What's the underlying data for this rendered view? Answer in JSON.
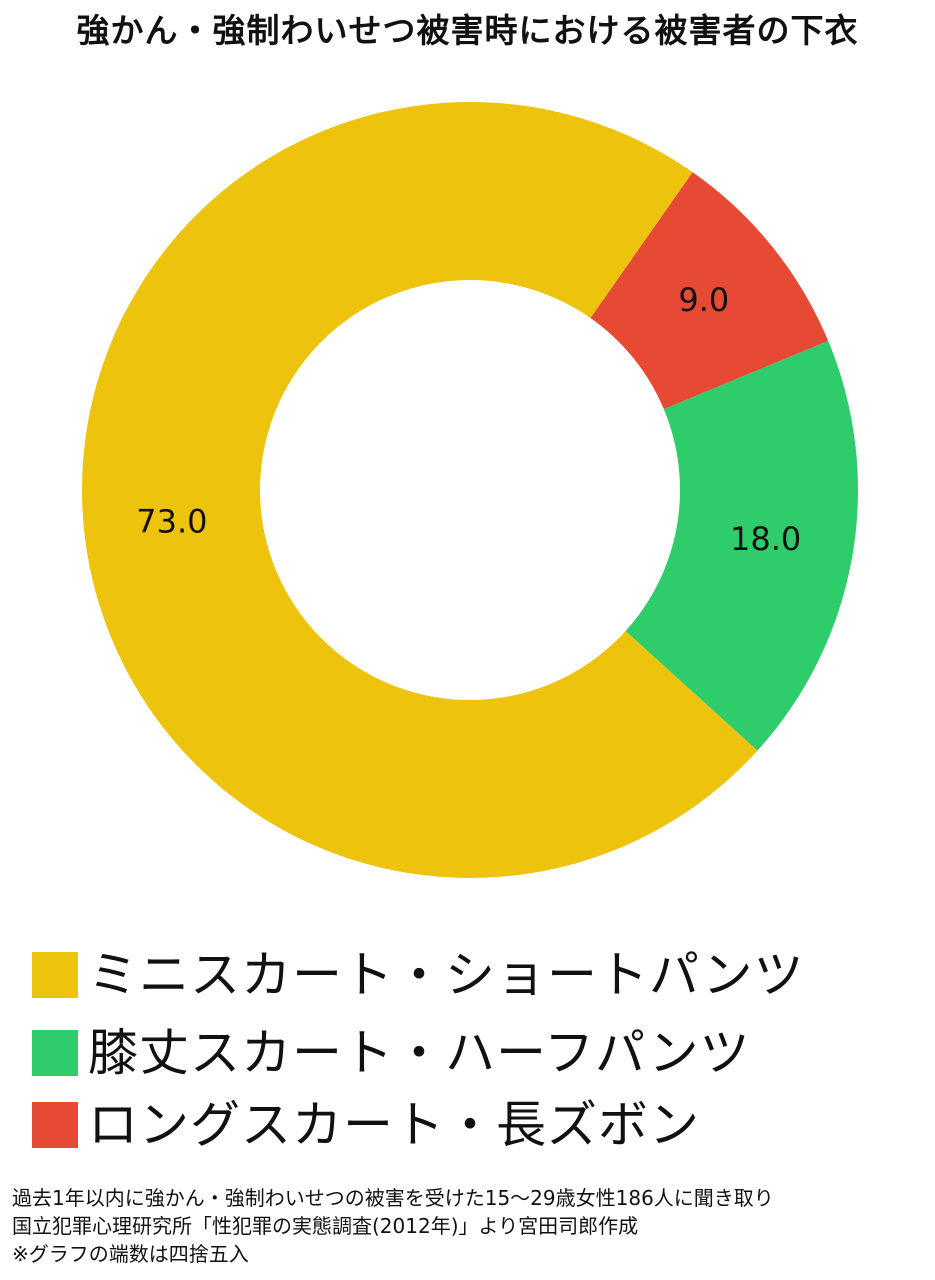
{
  "title": "強かん・強制わいせつ被害時における被害者の下衣",
  "chart_data": {
    "type": "pie",
    "style": "donut",
    "title": "強かん・強制わいせつ被害時における被害者の下衣",
    "slices": [
      {
        "label": "ミニスカート・ショートパンツ",
        "value": 73.0,
        "display": "73.0",
        "color": "#EEC30D"
      },
      {
        "label": "膝丈スカート・ハーフパンツ",
        "value": 18.0,
        "display": "18.0",
        "color": "#2ECC6B"
      },
      {
        "label": "ロングスカート・長ズボン",
        "value": 9.0,
        "display": "9.0",
        "color": "#E64A35"
      }
    ],
    "legend_position": "bottom-left"
  },
  "notes": [
    "過去1年以内に強かん・強制わいせつの被害を受けた15～29歳女性186人に聞き取り",
    "国立犯罪心理研究所「性犯罪の実態調査(2012年)」より宮田司郎作成",
    "※グラフの端数は四捨五入"
  ]
}
